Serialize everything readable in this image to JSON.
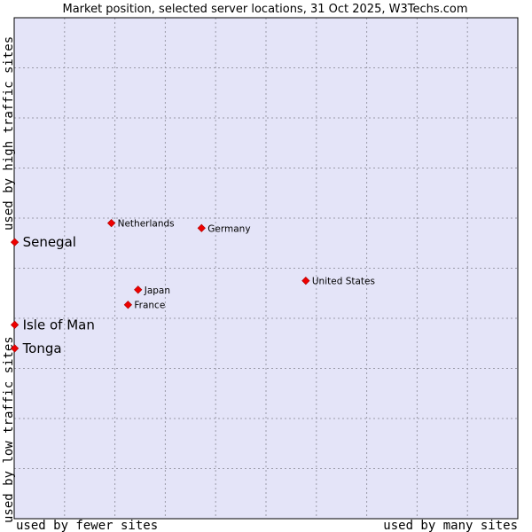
{
  "chart_data": {
    "type": "scatter",
    "title": "Market position, selected server locations, 31 Oct 2025, W3Techs.com",
    "xlabel_left": "used by fewer sites",
    "xlabel_right": "used by many sites",
    "ylabel_bottom": "used by low traffic sites",
    "ylabel_top": "used by high traffic sites",
    "xlim": [
      0,
      100
    ],
    "ylim": [
      0,
      100
    ],
    "grid": true,
    "points": [
      {
        "label": "Netherlands",
        "x": 19.3,
        "y": 59.0,
        "emphasis": false
      },
      {
        "label": "Germany",
        "x": 37.2,
        "y": 58.0,
        "emphasis": false
      },
      {
        "label": "United States",
        "x": 57.9,
        "y": 47.5,
        "emphasis": false
      },
      {
        "label": "Japan",
        "x": 24.6,
        "y": 45.7,
        "emphasis": false
      },
      {
        "label": "France",
        "x": 22.6,
        "y": 42.7,
        "emphasis": false
      },
      {
        "label": "Senegal",
        "x": 0.1,
        "y": 55.2,
        "emphasis": true
      },
      {
        "label": "Isle of Man",
        "x": 0.1,
        "y": 38.7,
        "emphasis": true
      },
      {
        "label": "Tonga",
        "x": 0.1,
        "y": 34.0,
        "emphasis": true
      }
    ]
  },
  "colors": {
    "plot_background": "#e4e4f8",
    "plot_border": "#000000",
    "marker": "#ee0000"
  }
}
